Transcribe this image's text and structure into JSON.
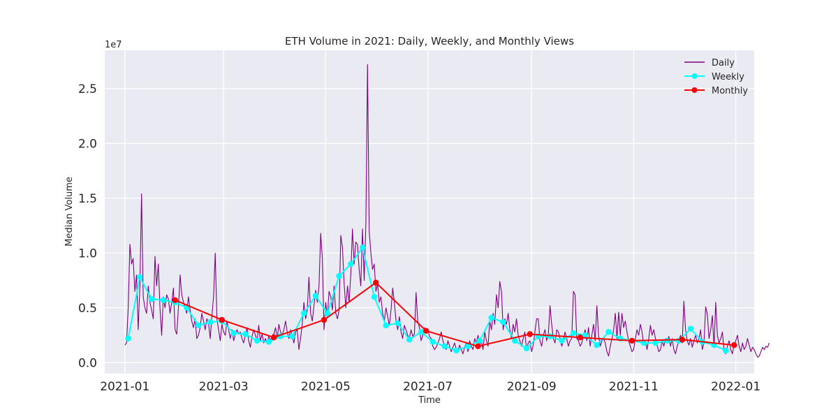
{
  "chart_data": {
    "type": "line",
    "title": "ETH Volume in 2021: Daily, Weekly, and Monthly Views",
    "xlabel": "Time",
    "ylabel": "Median Volume",
    "y_scale_label": "1e7",
    "y_ticks": [
      0.0,
      0.5,
      1.0,
      1.5,
      2.0,
      2.5
    ],
    "y_tick_labels": [
      "0.0",
      "0.5",
      "1.0",
      "1.5",
      "2.0",
      "2.5"
    ],
    "ylim": [
      -0.1,
      2.85
    ],
    "x_ticks": [
      "2021-01-01",
      "2021-03-01",
      "2021-05-01",
      "2021-07-01",
      "2021-09-01",
      "2021-11-01",
      "2022-01-01"
    ],
    "x_tick_labels": [
      "2021-01",
      "2021-03",
      "2021-05",
      "2021-07",
      "2021-09",
      "2021-11",
      "2022-01"
    ],
    "xlim": [
      "2020-12-20",
      "2022-01-12"
    ],
    "grid": true,
    "legend_position": "top-right",
    "colors": {
      "Daily": "#800080",
      "Weekly": "#00ffff",
      "Monthly": "#ff0000"
    },
    "series": [
      {
        "name": "Daily",
        "style": "line",
        "daily_start": "2021-01-01",
        "values": [
          0.16,
          0.18,
          0.5,
          1.08,
          0.9,
          0.95,
          0.65,
          0.8,
          0.3,
          0.7,
          1.54,
          0.6,
          0.5,
          0.45,
          0.7,
          0.55,
          0.48,
          0.4,
          0.97,
          0.7,
          0.9,
          0.5,
          0.25,
          0.6,
          0.5,
          0.62,
          0.58,
          0.45,
          0.55,
          0.68,
          0.3,
          0.26,
          0.5,
          0.8,
          0.62,
          0.55,
          0.5,
          0.45,
          0.6,
          0.48,
          0.38,
          0.32,
          0.4,
          0.22,
          0.25,
          0.32,
          0.45,
          0.38,
          0.3,
          0.4,
          0.36,
          0.22,
          0.42,
          0.6,
          1.0,
          0.4,
          0.3,
          0.2,
          0.35,
          0.28,
          0.25,
          0.38,
          0.3,
          0.22,
          0.3,
          0.2,
          0.26,
          0.3,
          0.26,
          0.28,
          0.22,
          0.18,
          0.25,
          0.32,
          0.2,
          0.14,
          0.24,
          0.3,
          0.25,
          0.2,
          0.34,
          0.2,
          0.26,
          0.18,
          0.22,
          0.17,
          0.24,
          0.2,
          0.25,
          0.26,
          0.32,
          0.22,
          0.35,
          0.28,
          0.25,
          0.3,
          0.38,
          0.28,
          0.22,
          0.3,
          0.24,
          0.18,
          0.28,
          0.3,
          0.12,
          0.22,
          0.35,
          0.55,
          0.4,
          0.48,
          0.78,
          0.45,
          0.38,
          0.52,
          0.66,
          0.55,
          0.7,
          1.18,
          0.95,
          0.3,
          0.55,
          0.42,
          0.65,
          0.6,
          0.48,
          0.7,
          0.45,
          0.4,
          0.48,
          1.16,
          1.05,
          0.72,
          0.5,
          0.7,
          0.55,
          0.8,
          1.22,
          0.9,
          1.1,
          1.08,
          0.85,
          0.7,
          1.22,
          0.75,
          1.26,
          2.72,
          1.2,
          1.0,
          0.85,
          0.9,
          0.65,
          0.72,
          0.55,
          0.6,
          0.45,
          0.38,
          0.5,
          0.42,
          0.34,
          0.48,
          0.68,
          0.55,
          0.38,
          0.3,
          0.42,
          0.28,
          0.22,
          0.34,
          0.3,
          0.25,
          0.22,
          0.3,
          0.24,
          0.26,
          0.64,
          0.38,
          0.32,
          0.2,
          0.25,
          0.32,
          0.28,
          0.3,
          0.24,
          0.22,
          0.15,
          0.12,
          0.14,
          0.18,
          0.22,
          0.28,
          0.2,
          0.16,
          0.12,
          0.2,
          0.15,
          0.1,
          0.14,
          0.18,
          0.12,
          0.1,
          0.16,
          0.12,
          0.08,
          0.14,
          0.18,
          0.1,
          0.2,
          0.15,
          0.12,
          0.22,
          0.18,
          0.25,
          0.15,
          0.2,
          0.12,
          0.28,
          0.2,
          0.15,
          0.38,
          0.3,
          0.45,
          0.35,
          0.62,
          0.5,
          0.74,
          0.65,
          0.3,
          0.4,
          0.35,
          0.45,
          0.3,
          0.22,
          0.35,
          0.28,
          0.4,
          0.25,
          0.2,
          0.15,
          0.22,
          0.28,
          0.12,
          0.18,
          0.2,
          0.1,
          0.16,
          0.28,
          0.4,
          0.4,
          0.2,
          0.15,
          0.25,
          0.3,
          0.2,
          0.26,
          0.52,
          0.35,
          0.22,
          0.18,
          0.3,
          0.28,
          0.22,
          0.15,
          0.2,
          0.28,
          0.22,
          0.15,
          0.2,
          0.22,
          0.65,
          0.62,
          0.22,
          0.2,
          0.15,
          0.18,
          0.25,
          0.3,
          0.2,
          0.32,
          0.15,
          0.25,
          0.35,
          0.2,
          0.52,
          0.25,
          0.15,
          0.2,
          0.22,
          0.18,
          0.1,
          0.06,
          0.15,
          0.22,
          0.3,
          0.45,
          0.22,
          0.46,
          0.25,
          0.45,
          0.32,
          0.38,
          0.28,
          0.2,
          0.15,
          0.1,
          0.12,
          0.22,
          0.3,
          0.25,
          0.35,
          0.28,
          0.16,
          0.2,
          0.12,
          0.22,
          0.34,
          0.25,
          0.3,
          0.22,
          0.16,
          0.1,
          0.12,
          0.2,
          0.15,
          0.22,
          0.18,
          0.24,
          0.15,
          0.22,
          0.12,
          0.08,
          0.15,
          0.2,
          0.25,
          0.18,
          0.56,
          0.3,
          0.2,
          0.16,
          0.22,
          0.14,
          0.2,
          0.25,
          0.18,
          0.22,
          0.3,
          0.12,
          0.18,
          0.51,
          0.44,
          0.22,
          0.3,
          0.43,
          0.14,
          0.55,
          0.25,
          0.18,
          0.22,
          0.28,
          0.1,
          0.08,
          0.15,
          0.2,
          0.12,
          0.08,
          0.16,
          0.2,
          0.25,
          0.15,
          0.1,
          0.18,
          0.12,
          0.15,
          0.22,
          0.16,
          0.1,
          0.14,
          0.12,
          0.08,
          0.05,
          0.06,
          0.1,
          0.14,
          0.12,
          0.15,
          0.14,
          0.18
        ]
      },
      {
        "name": "Weekly",
        "style": "line-marker",
        "points": [
          [
            "2021-01-03",
            0.22
          ],
          [
            "2021-01-10",
            0.78
          ],
          [
            "2021-01-17",
            0.58
          ],
          [
            "2021-01-24",
            0.57
          ],
          [
            "2021-01-31",
            0.55
          ],
          [
            "2021-02-07",
            0.5
          ],
          [
            "2021-02-14",
            0.34
          ],
          [
            "2021-02-21",
            0.37
          ],
          [
            "2021-02-28",
            0.38
          ],
          [
            "2021-03-07",
            0.27
          ],
          [
            "2021-03-14",
            0.26
          ],
          [
            "2021-03-21",
            0.2
          ],
          [
            "2021-03-28",
            0.19
          ],
          [
            "2021-04-04",
            0.24
          ],
          [
            "2021-04-11",
            0.24
          ],
          [
            "2021-04-18",
            0.45
          ],
          [
            "2021-04-25",
            0.61
          ],
          [
            "2021-05-02",
            0.45
          ],
          [
            "2021-05-09",
            0.79
          ],
          [
            "2021-05-16",
            0.9
          ],
          [
            "2021-05-23",
            1.05
          ],
          [
            "2021-05-30",
            0.6
          ],
          [
            "2021-06-06",
            0.34
          ],
          [
            "2021-06-13",
            0.36
          ],
          [
            "2021-06-20",
            0.21
          ],
          [
            "2021-06-27",
            0.28
          ],
          [
            "2021-07-04",
            0.19
          ],
          [
            "2021-07-11",
            0.15
          ],
          [
            "2021-07-18",
            0.11
          ],
          [
            "2021-07-25",
            0.15
          ],
          [
            "2021-08-01",
            0.2
          ],
          [
            "2021-08-08",
            0.41
          ],
          [
            "2021-08-15",
            0.37
          ],
          [
            "2021-08-22",
            0.2
          ],
          [
            "2021-08-29",
            0.13
          ],
          [
            "2021-09-05",
            0.24
          ],
          [
            "2021-09-12",
            0.24
          ],
          [
            "2021-09-19",
            0.2
          ],
          [
            "2021-09-26",
            0.27
          ],
          [
            "2021-10-03",
            0.25
          ],
          [
            "2021-10-10",
            0.16
          ],
          [
            "2021-10-17",
            0.28
          ],
          [
            "2021-10-24",
            0.22
          ],
          [
            "2021-10-31",
            0.2
          ],
          [
            "2021-11-07",
            0.18
          ],
          [
            "2021-11-14",
            0.18
          ],
          [
            "2021-11-21",
            0.2
          ],
          [
            "2021-11-28",
            0.2
          ],
          [
            "2021-12-05",
            0.31
          ],
          [
            "2021-12-12",
            0.19
          ],
          [
            "2021-12-19",
            0.16
          ],
          [
            "2021-12-26",
            0.11
          ]
        ]
      },
      {
        "name": "Monthly",
        "style": "line-marker",
        "points": [
          [
            "2021-01-31",
            0.57
          ],
          [
            "2021-02-28",
            0.39
          ],
          [
            "2021-03-31",
            0.23
          ],
          [
            "2021-04-30",
            0.39
          ],
          [
            "2021-05-31",
            0.73
          ],
          [
            "2021-06-30",
            0.29
          ],
          [
            "2021-07-31",
            0.15
          ],
          [
            "2021-08-31",
            0.26
          ],
          [
            "2021-09-30",
            0.23
          ],
          [
            "2021-10-31",
            0.2
          ],
          [
            "2021-11-30",
            0.21
          ],
          [
            "2021-12-31",
            0.16
          ]
        ]
      }
    ]
  }
}
